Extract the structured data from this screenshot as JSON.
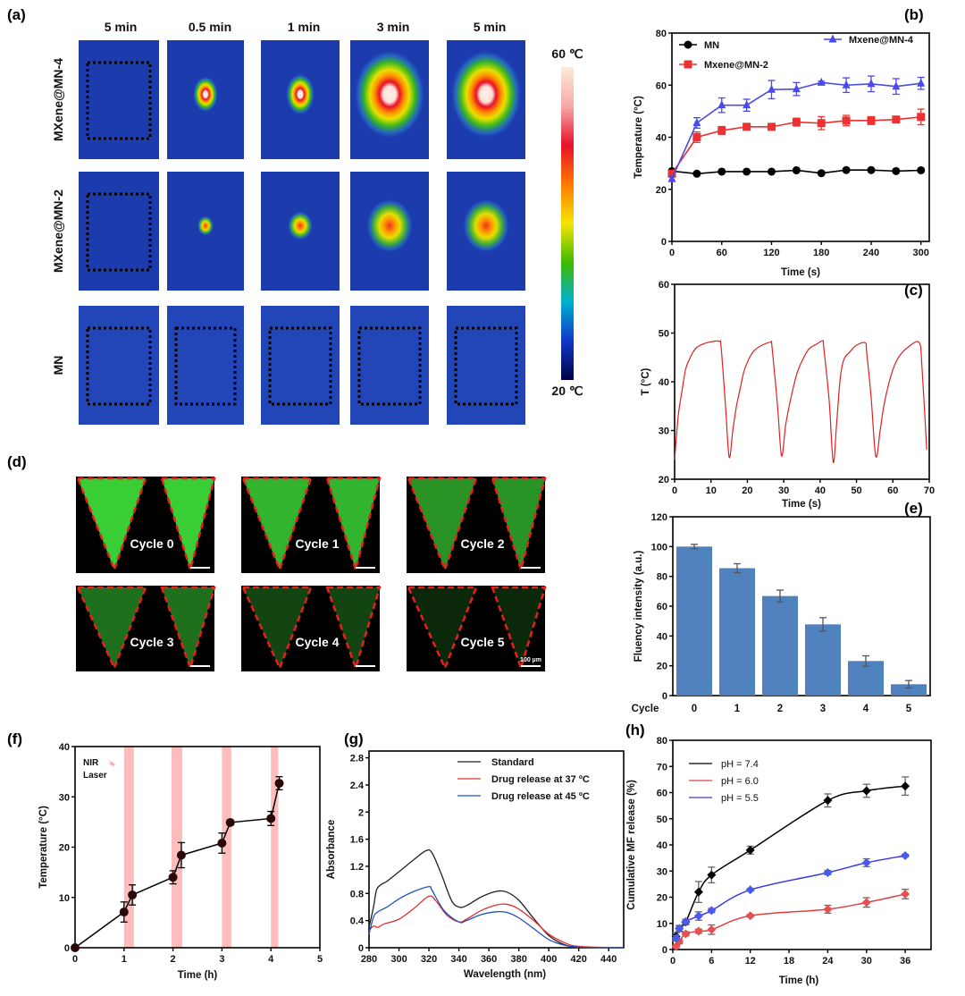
{
  "panel_labels": {
    "a": "(a)",
    "b": "(b)",
    "c": "(c)",
    "d": "(d)",
    "e": "(e)",
    "f": "(f)",
    "g": "(g)",
    "h": "(h)"
  },
  "panel_a": {
    "columns": [
      "5 min",
      "0.5 min",
      "1 min",
      "3 min",
      "5 min"
    ],
    "rows": [
      "MXene@MN-4",
      "MXene@MN-2",
      "MN"
    ],
    "colorbar": {
      "max_label": "60 ℃",
      "min_label": "20 ℃",
      "colors": [
        "#fcebd9",
        "#f7a9a8",
        "#e8102a",
        "#ff7a00",
        "#f3e600",
        "#3cba00",
        "#00b0d0",
        "#1038c8",
        "#000048"
      ]
    }
  },
  "panel_d": {
    "cycles": [
      "Cycle 0",
      "Cycle 1",
      "Cycle 2",
      "Cycle 3",
      "Cycle 4",
      "Cycle 5"
    ],
    "scale_bar": "100 µm",
    "colors": {
      "fluorescence": "#3ee03a",
      "outline": "#e8201c",
      "background": "#000000"
    }
  },
  "chart_data": [
    {
      "panel": "(b)",
      "type": "line",
      "xlabel": "Time (s)",
      "ylabel": "Temperature (°C)",
      "xlim": [
        0,
        310
      ],
      "ylim": [
        0,
        80
      ],
      "xticks": [
        "0",
        "60",
        "120",
        "180",
        "240",
        "300"
      ],
      "yticks": [
        "0",
        "20",
        "40",
        "60",
        "80"
      ],
      "x": [
        0,
        30,
        60,
        90,
        120,
        150,
        180,
        210,
        240,
        270,
        300
      ],
      "series": [
        {
          "name": "MN",
          "color": "#000000",
          "marker": "circle",
          "values": [
            27,
            26,
            26.8,
            26.8,
            26.8,
            27.3,
            26.2,
            27.4,
            27.4,
            27,
            27.3
          ],
          "errors": [
            0.5,
            0.5,
            0.5,
            0.5,
            0.5,
            0.5,
            0.5,
            0.5,
            0.5,
            0.5,
            0.5
          ]
        },
        {
          "name": "Mxene@MN-2",
          "color": "#ee3030",
          "marker": "square",
          "values": [
            26,
            40,
            42.6,
            44,
            44,
            45.8,
            45.4,
            46.4,
            46.4,
            46.8,
            47.8
          ],
          "errors": [
            0.5,
            2,
            1.5,
            1,
            1,
            1.5,
            2.5,
            2,
            1.5,
            1,
            3
          ]
        },
        {
          "name": "Mxene@MN-4",
          "color": "#4a4ae8",
          "marker": "triangle",
          "values": [
            24,
            45.5,
            52.3,
            52.3,
            58.3,
            58.5,
            61,
            60,
            60.5,
            59.5,
            60.7
          ],
          "errors": [
            1,
            2,
            2.8,
            2.3,
            3.5,
            2.5,
            0.5,
            2.8,
            3,
            3,
            2.3
          ]
        }
      ]
    },
    {
      "panel": "(c)",
      "type": "line",
      "xlabel": "Time (s)",
      "ylabel": "T (°C)",
      "xlim": [
        0,
        70
      ],
      "ylim": [
        20,
        60
      ],
      "xticks": [
        "0",
        "10",
        "20",
        "30",
        "40",
        "50",
        "60",
        "70"
      ],
      "yticks": [
        "20",
        "30",
        "40",
        "50",
        "60"
      ],
      "series": [
        {
          "color": "#e02020",
          "x": [
            0,
            1,
            2,
            3,
            4,
            5,
            6,
            8,
            10,
            12.3,
            12.8,
            14,
            15,
            16,
            17,
            18,
            19,
            20,
            21,
            22,
            24,
            26.4,
            26.8,
            28.3,
            29.4,
            30.5,
            31.5,
            33,
            34,
            35.5,
            37,
            39,
            40.7,
            41,
            42.5,
            43.6,
            44.5,
            45.5,
            46.5,
            48,
            50,
            52.4,
            52.8,
            54,
            55.3,
            56.5,
            57.5,
            59,
            60.5,
            62,
            64,
            67.2,
            68,
            69.3
          ],
          "y": [
            24,
            33,
            38,
            42.5,
            44.5,
            46,
            47,
            47.8,
            48.2,
            48.3,
            47,
            35,
            24.5,
            30,
            35,
            38.5,
            42,
            44,
            45.5,
            46.5,
            47.5,
            48.1,
            47,
            35,
            24.8,
            31,
            35,
            40,
            42.5,
            45,
            46.8,
            47.7,
            48.4,
            47,
            36,
            23.5,
            31,
            40.5,
            44.5,
            46,
            47.5,
            48,
            46,
            37,
            24.7,
            30,
            35,
            40,
            43.5,
            45.5,
            47,
            48.1,
            43,
            26
          ]
        }
      ]
    },
    {
      "panel": "(e)",
      "type": "bar",
      "xlabel": "Cycle",
      "ylabel": "Fluency intensity (a.u.)",
      "ylim": [
        0,
        120
      ],
      "yticks": [
        "0",
        "20",
        "40",
        "60",
        "80",
        "100",
        "120"
      ],
      "categories": [
        "0",
        "1",
        "2",
        "3",
        "4",
        "5"
      ],
      "values": [
        100,
        85.5,
        66.8,
        47.8,
        23.2,
        7.6
      ],
      "errors": [
        1.5,
        3,
        4,
        4.5,
        3.5,
        2.5
      ],
      "color": "#4f81bd"
    },
    {
      "panel": "(f)",
      "type": "line",
      "xlabel": "Time (h)",
      "ylabel": "Temperature (°C)",
      "xlim": [
        0,
        5
      ],
      "ylim": [
        0,
        40
      ],
      "xticks": [
        "0",
        "1",
        "2",
        "3",
        "4",
        "5"
      ],
      "yticks": [
        "0",
        "10",
        "20",
        "30",
        "40"
      ],
      "annotation": "NIR Laser",
      "annotation_lines": [
        "NIR",
        "Laser"
      ],
      "laser_bands": [
        [
          1,
          1.2
        ],
        [
          1.97,
          2.19
        ],
        [
          3,
          3.19
        ],
        [
          4,
          4.15
        ]
      ],
      "band_color": "#ffbcbc",
      "series": [
        {
          "color": "#000000",
          "marker": "circle",
          "marker_color": "#2a0808",
          "x": [
            0,
            1,
            1.17,
            2,
            2.17,
            3,
            3.17,
            4,
            4.17
          ],
          "values": [
            0,
            7.1,
            10.5,
            14,
            18.4,
            20.8,
            24.9,
            25.7,
            32.7
          ],
          "errors": [
            0,
            2,
            2,
            1.3,
            2.5,
            2,
            0.5,
            1.4,
            1.3
          ]
        }
      ]
    },
    {
      "panel": "(g)",
      "type": "line",
      "xlabel": "Wavelength (nm)",
      "ylabel": "Absorbance",
      "xlim": [
        280,
        450
      ],
      "ylim": [
        0,
        2.9
      ],
      "xticks": [
        "280",
        "300",
        "320",
        "340",
        "360",
        "380",
        "400",
        "420",
        "440"
      ],
      "yticks": [
        "0",
        "0.4",
        "0.8",
        "1.2",
        "1.6",
        "2",
        "2.4",
        "2.8"
      ],
      "series": [
        {
          "name": "Standard",
          "color": "#222222",
          "x": [
            280,
            283,
            285,
            288,
            292,
            300,
            310,
            318,
            322,
            328,
            335,
            340,
            345,
            355,
            365,
            372,
            380,
            390,
            400,
            410,
            420,
            450
          ],
          "y": [
            0.3,
            0.6,
            0.85,
            0.93,
            0.98,
            1.12,
            1.3,
            1.43,
            1.4,
            1.1,
            0.7,
            0.6,
            0.62,
            0.75,
            0.83,
            0.82,
            0.7,
            0.43,
            0.18,
            0.05,
            0.01,
            0
          ]
        },
        {
          "name": "Drug release at 37 ºC",
          "color": "#e03030",
          "x": [
            280,
            283,
            286,
            290,
            300,
            310,
            320,
            325,
            332,
            340,
            345,
            355,
            365,
            372,
            380,
            390,
            400,
            410,
            420,
            450
          ],
          "y": [
            0.25,
            0.32,
            0.3,
            0.35,
            0.42,
            0.58,
            0.76,
            0.68,
            0.48,
            0.38,
            0.42,
            0.55,
            0.63,
            0.64,
            0.57,
            0.4,
            0.2,
            0.08,
            0.02,
            0
          ]
        },
        {
          "name": "Drug release at 45 ºC",
          "color": "#2050c0",
          "x": [
            280,
            283,
            286,
            292,
            300,
            310,
            320,
            322,
            330,
            340,
            345,
            355,
            365,
            372,
            380,
            390,
            400,
            410,
            420,
            450
          ],
          "y": [
            0.2,
            0.45,
            0.53,
            0.6,
            0.72,
            0.83,
            0.9,
            0.85,
            0.55,
            0.38,
            0.4,
            0.49,
            0.53,
            0.52,
            0.44,
            0.28,
            0.12,
            0.04,
            0.01,
            0
          ]
        }
      ]
    },
    {
      "panel": "(h)",
      "type": "line",
      "xlabel": "Time (h)",
      "ylabel": "Cumulative MF release (%)",
      "xlim": [
        0,
        40
      ],
      "ylim": [
        0,
        80
      ],
      "xticks": [
        "0",
        "6",
        "12",
        "18",
        "24",
        "30",
        "36"
      ],
      "yticks": [
        "0",
        "10",
        "20",
        "30",
        "40",
        "50",
        "60",
        "70",
        "80"
      ],
      "series": [
        {
          "name": "pH = 7.4",
          "color": "#000000",
          "marker_color": "#000000",
          "x": [
            0.5,
            1,
            2,
            4,
            6,
            12,
            24,
            30,
            36
          ],
          "values": [
            5,
            8,
            10.5,
            22,
            28.5,
            38,
            57,
            60.7,
            62.5
          ],
          "errors": [
            1.5,
            1,
            1,
            4,
            3,
            1.5,
            2.5,
            2.5,
            3.5
          ]
        },
        {
          "name": "pH = 6.0",
          "color": "#e04040",
          "marker_color": "#e85050",
          "x": [
            0.5,
            1,
            2,
            4,
            6,
            12,
            24,
            30,
            36
          ],
          "values": [
            1.2,
            3,
            6,
            7,
            7.6,
            12.9,
            15.4,
            18,
            21.2
          ],
          "errors": [
            0.5,
            0.8,
            0.8,
            0.8,
            1.8,
            0.5,
            1.5,
            1.8,
            1.8
          ]
        },
        {
          "name": "pH = 5.5",
          "color": "#3a3ae0",
          "marker_color": "#4a5af0",
          "x": [
            0.5,
            1,
            2,
            4,
            6,
            12,
            24,
            30,
            36
          ],
          "values": [
            4.3,
            8,
            10.7,
            12.8,
            14.9,
            22.8,
            29.4,
            33.2,
            35.9
          ],
          "errors": [
            1,
            1.2,
            0.8,
            1.6,
            0.8,
            0.5,
            0.8,
            1.5,
            0.5
          ]
        }
      ]
    }
  ]
}
